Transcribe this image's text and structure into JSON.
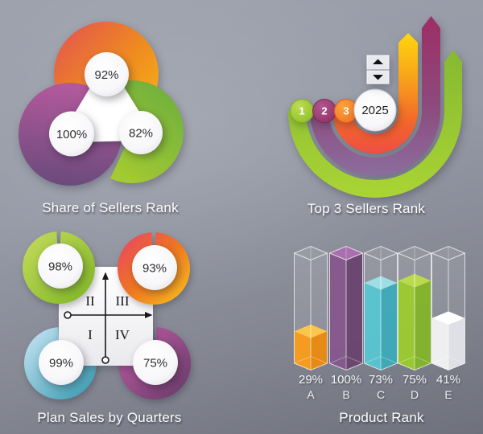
{
  "panels": {
    "share": {
      "title": "Share of Sellers Rank",
      "items": [
        {
          "position": "top",
          "value_label": "92%"
        },
        {
          "position": "left",
          "value_label": "100%"
        },
        {
          "position": "right",
          "value_label": "82%"
        }
      ]
    },
    "top3": {
      "title": "Top 3 Sellers Rank",
      "year": "2025",
      "ranks": [
        "1",
        "2",
        "3"
      ],
      "spinner": {
        "up_icon": "triangle-up",
        "down_icon": "triangle-down"
      }
    },
    "quarters": {
      "title": "Plan Sales by Quarters",
      "axis_quadrant_labels": {
        "top_left": "II",
        "top_right": "III",
        "bottom_left": "I",
        "bottom_right": "IV"
      },
      "items": [
        {
          "position": "top-left",
          "value_label": "98%"
        },
        {
          "position": "top-right",
          "value_label": "93%"
        },
        {
          "position": "bottom-left",
          "value_label": "99%"
        },
        {
          "position": "bottom-right",
          "value_label": "75%"
        }
      ]
    },
    "product": {
      "title": "Product Rank",
      "bars": [
        {
          "category": "A",
          "value_label": "29%"
        },
        {
          "category": "B",
          "value_label": "100%"
        },
        {
          "category": "C",
          "value_label": "73%"
        },
        {
          "category": "D",
          "value_label": "75%"
        },
        {
          "category": "E",
          "value_label": "41%"
        }
      ]
    }
  },
  "chart_data": [
    {
      "type": "pie",
      "variant": "overlapping-circle-badges",
      "title": "Share of Sellers Rank",
      "categories": [
        "top",
        "left",
        "right"
      ],
      "values": [
        92,
        100,
        82
      ],
      "unit": "%",
      "colors": [
        "#ef8c1f",
        "#8e5190",
        "#96c32f"
      ]
    },
    {
      "type": "pie",
      "variant": "curved-ribbon-arrows",
      "title": "Top 3 Sellers Rank",
      "categories": [
        "1",
        "2",
        "3"
      ],
      "center_label": "2025",
      "colors": [
        "#9cc92f",
        "#a03a6e",
        "#f68b1f"
      ]
    },
    {
      "type": "pie",
      "variant": "donut-ring-grid",
      "title": "Plan Sales by Quarters",
      "categories": [
        "II",
        "III",
        "I",
        "IV"
      ],
      "values": [
        98,
        93,
        99,
        75
      ],
      "unit": "%",
      "colors": [
        "#9cc634",
        "#f07a22",
        "#6fbac9",
        "#96488b"
      ]
    },
    {
      "type": "bar",
      "variant": "3d-glass-columns",
      "title": "Product Rank",
      "categories": [
        "A",
        "B",
        "C",
        "D",
        "E"
      ],
      "values": [
        29,
        100,
        73,
        75,
        41
      ],
      "unit": "%",
      "ylim": [
        0,
        100
      ],
      "colors3d": [
        {
          "top": "#fdc54b",
          "left": "#f89c1d",
          "right": "#e98a12"
        },
        {
          "top": "#a96fae",
          "left": "#86588c",
          "right": "#6a4470"
        },
        {
          "top": "#9fdfe4",
          "left": "#58c4d0",
          "right": "#3ea9b8"
        },
        {
          "top": "#bada4e",
          "left": "#9bca2f",
          "right": "#83b42a"
        },
        {
          "top": "#ffffff",
          "left": "#f3f3f5",
          "right": "#e2e2e8"
        }
      ]
    }
  ]
}
